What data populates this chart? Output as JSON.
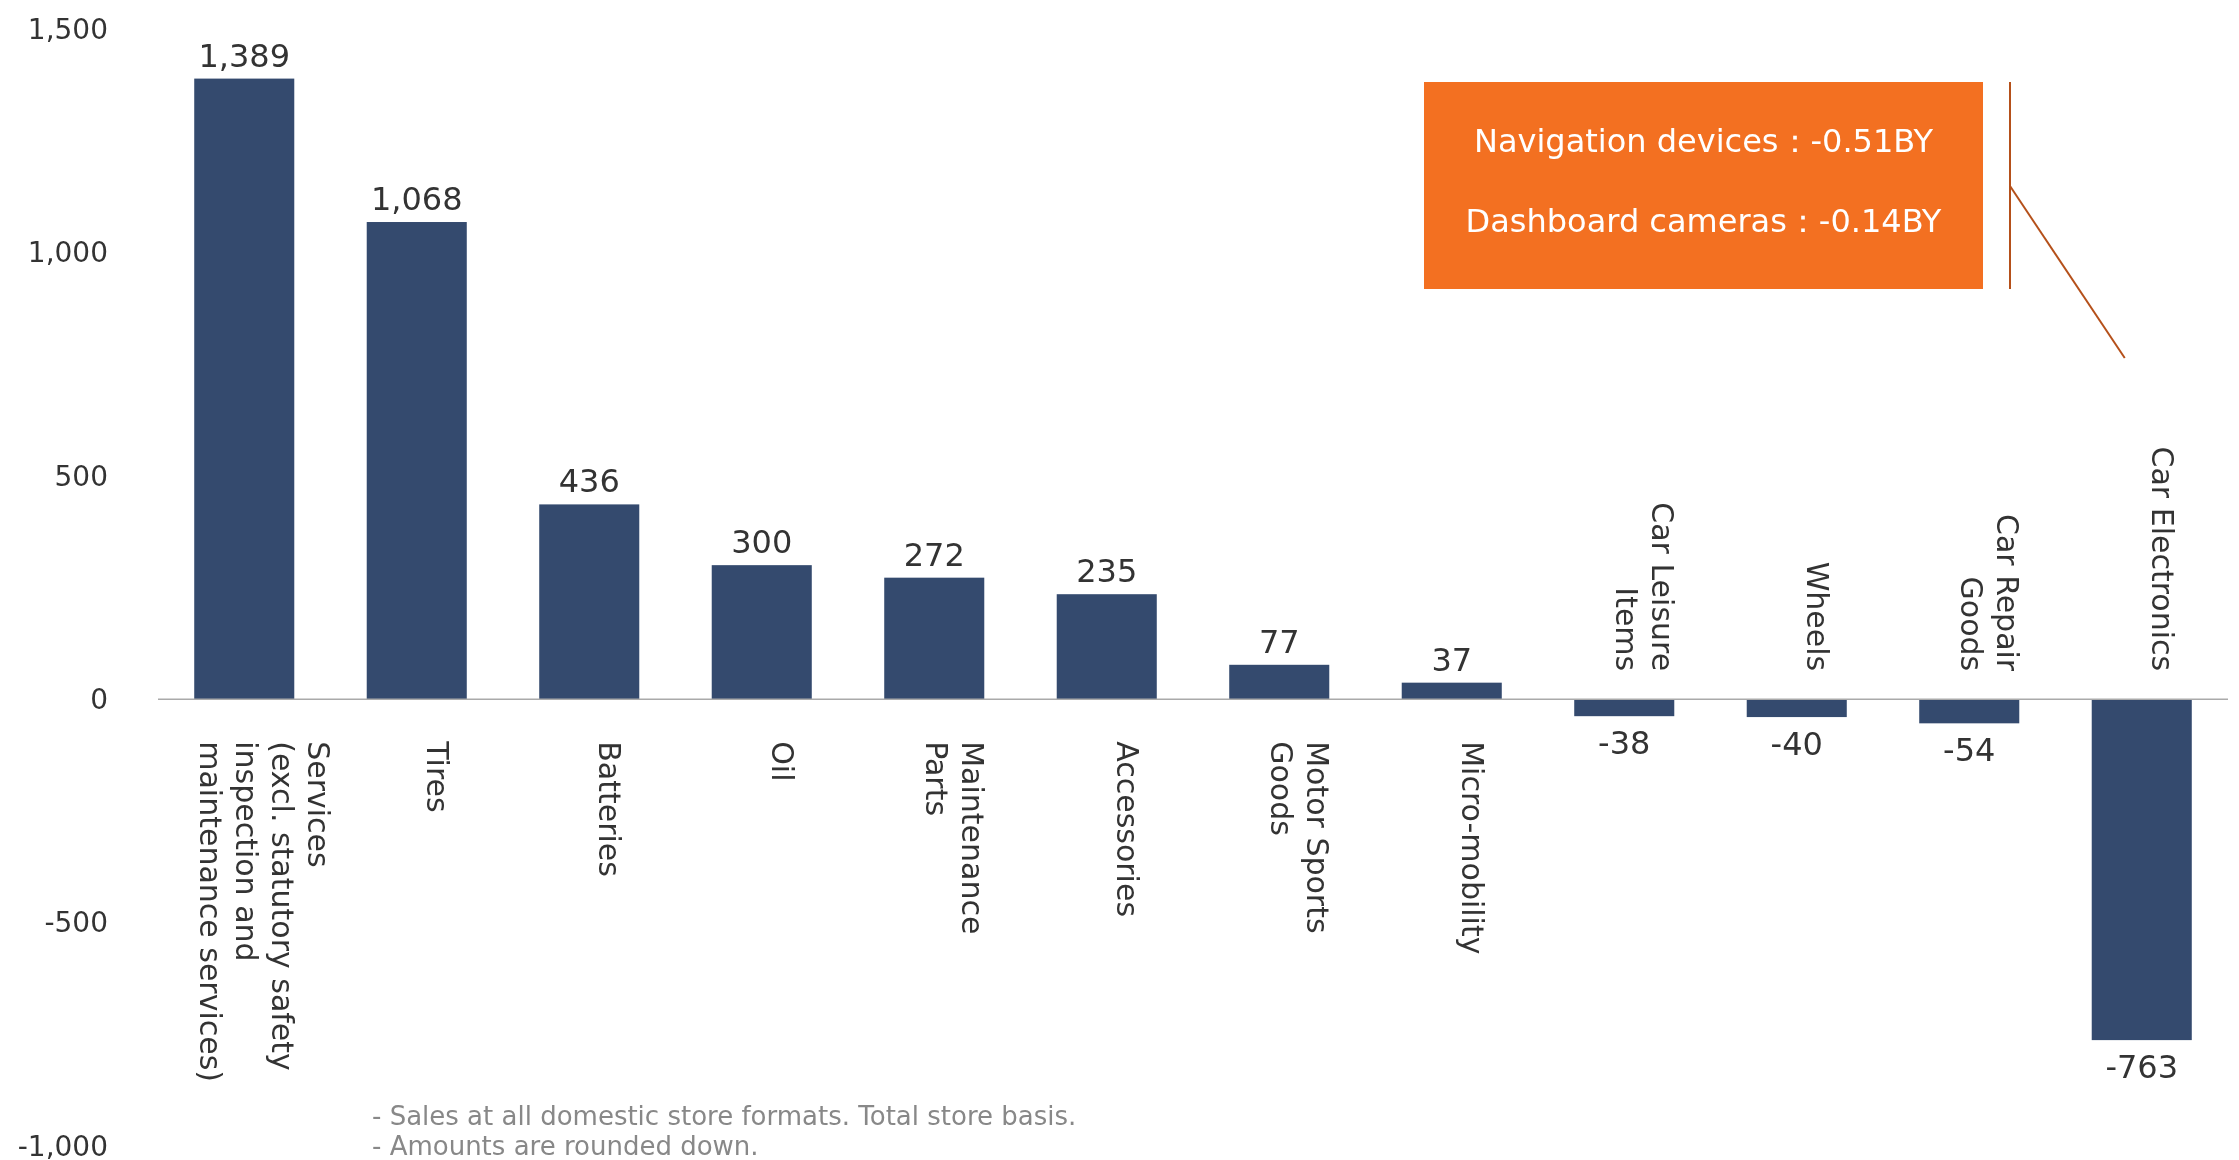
{
  "chart_data": {
    "type": "bar",
    "categories": [
      "Services\n(excl. statutory safety\ninspection and\nmaintenance services)",
      "Tires",
      "Batteries",
      "Oil",
      "Maintenance\nParts",
      "Accessories",
      "Motor Sports\nGoods",
      "Micro-mobility",
      "Car Leisure\nItems",
      "Wheels",
      "Car Repair\nGoods",
      "Car Electronics"
    ],
    "values": [
      1389,
      1068,
      436,
      300,
      272,
      235,
      77,
      37,
      -38,
      -40,
      -54,
      -763
    ],
    "value_labels": [
      "1,389",
      "1,068",
      "436",
      "300",
      "272",
      "235",
      "77",
      "37",
      "-38",
      "-40",
      "-54",
      "-763"
    ],
    "color": "#344a6e",
    "ylim": [
      -1000,
      1500
    ],
    "yticks": [
      {
        "value": -1000,
        "label": "-1,000"
      },
      -500,
      0,
      500,
      {
        "value": 1000,
        "label": "1,000"
      },
      {
        "value": 1500,
        "label": "1,500"
      }
    ],
    "grid": false,
    "annotations": [
      "Navigation devices：-0.51BY",
      "Dashboard cameras：-0.14BY",
      "- Sales at all domestic store formats. Total store basis.",
      "- Amounts are rounded down."
    ]
  }
}
